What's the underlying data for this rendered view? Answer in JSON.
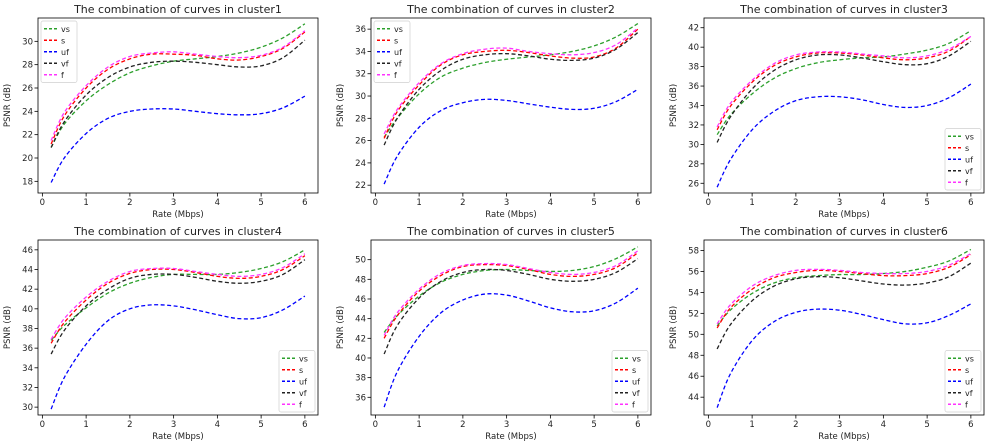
{
  "chart_data": [
    {
      "type": "line",
      "title": "The combination of curves in cluster1",
      "xlabel": "Rate (Mbps)",
      "ylabel": "PSNR (dB)",
      "xlim": [
        -0.1,
        6.3
      ],
      "ylim": [
        17,
        32
      ],
      "xticks": [
        0,
        1,
        2,
        3,
        4,
        5,
        6
      ],
      "yticks": [
        18,
        20,
        22,
        24,
        26,
        28,
        30
      ],
      "legend_position": "top-left",
      "x": [
        0.2,
        0.5,
        1,
        1.5,
        2,
        2.5,
        3,
        3.5,
        4,
        4.5,
        5,
        5.5,
        6
      ],
      "series": [
        {
          "name": "vs",
          "color": "#2ca02c",
          "values": [
            20.9,
            22.9,
            24.9,
            26.3,
            27.3,
            27.9,
            28.3,
            28.5,
            28.7,
            29.0,
            29.5,
            30.3,
            31.5
          ]
        },
        {
          "name": "s",
          "color": "#ff0000",
          "values": [
            21.2,
            23.6,
            26.0,
            27.6,
            28.5,
            28.9,
            28.9,
            28.8,
            28.5,
            28.4,
            28.7,
            29.4,
            30.8
          ]
        },
        {
          "name": "uf",
          "color": "#0000ff",
          "values": [
            17.9,
            20.0,
            22.1,
            23.4,
            24.0,
            24.2,
            24.2,
            24.0,
            23.8,
            23.7,
            23.8,
            24.3,
            25.3
          ]
        },
        {
          "name": "vf",
          "color": "#222222",
          "values": [
            20.9,
            23.1,
            25.4,
            26.9,
            27.8,
            28.2,
            28.3,
            28.2,
            28.0,
            27.8,
            27.9,
            28.6,
            30.1
          ]
        },
        {
          "name": "f",
          "color": "#ff33ff",
          "values": [
            21.5,
            23.9,
            26.2,
            27.8,
            28.7,
            29.0,
            29.1,
            28.9,
            28.7,
            28.6,
            28.8,
            29.5,
            30.9
          ]
        }
      ]
    },
    {
      "type": "line",
      "title": "The combination of curves in cluster2",
      "xlabel": "Rate (Mbps)",
      "ylabel": "PSNR (dB)",
      "xlim": [
        -0.1,
        6.3
      ],
      "ylim": [
        21.3,
        37
      ],
      "xticks": [
        0,
        1,
        2,
        3,
        4,
        5,
        6
      ],
      "yticks": [
        22,
        24,
        26,
        28,
        30,
        32,
        34,
        36
      ],
      "legend_position": "top-left",
      "x": [
        0.2,
        0.5,
        1,
        1.5,
        2,
        2.5,
        3,
        3.5,
        4,
        4.5,
        5,
        5.5,
        6
      ],
      "series": [
        {
          "name": "vs",
          "color": "#2ca02c",
          "values": [
            26.3,
            28.0,
            30.2,
            31.7,
            32.5,
            33.0,
            33.3,
            33.5,
            33.7,
            34.0,
            34.5,
            35.3,
            36.5
          ]
        },
        {
          "name": "s",
          "color": "#ff0000",
          "values": [
            26.2,
            28.6,
            31.0,
            32.8,
            33.7,
            34.0,
            34.1,
            33.9,
            33.6,
            33.4,
            33.5,
            34.3,
            36.0
          ]
        },
        {
          "name": "uf",
          "color": "#0000ff",
          "values": [
            22.1,
            24.6,
            27.2,
            28.7,
            29.4,
            29.7,
            29.6,
            29.3,
            29.0,
            28.8,
            28.9,
            29.5,
            30.6
          ]
        },
        {
          "name": "vf",
          "color": "#222222",
          "values": [
            25.6,
            28.0,
            30.6,
            32.3,
            33.3,
            33.7,
            33.8,
            33.6,
            33.3,
            33.2,
            33.4,
            34.2,
            35.7
          ]
        },
        {
          "name": "f",
          "color": "#ff33ff",
          "values": [
            26.6,
            28.8,
            31.2,
            32.9,
            33.8,
            34.2,
            34.3,
            34.0,
            33.8,
            33.7,
            33.9,
            34.6,
            36.1
          ]
        }
      ]
    },
    {
      "type": "line",
      "title": "The combination of curves in cluster3",
      "xlabel": "Rate (Mbps)",
      "ylabel": "PSNR (dB)",
      "xlim": [
        -0.1,
        6.3
      ],
      "ylim": [
        25,
        43
      ],
      "xticks": [
        0,
        1,
        2,
        3,
        4,
        5,
        6
      ],
      "yticks": [
        26,
        28,
        30,
        32,
        34,
        36,
        38,
        40,
        42
      ],
      "legend_position": "bottom-right",
      "x": [
        0.2,
        0.5,
        1,
        1.5,
        2,
        2.5,
        3,
        3.5,
        4,
        4.5,
        5,
        5.5,
        6
      ],
      "series": [
        {
          "name": "vs",
          "color": "#2ca02c",
          "values": [
            31.0,
            33.0,
            35.2,
            36.8,
            37.8,
            38.4,
            38.7,
            38.9,
            39.0,
            39.3,
            39.7,
            40.4,
            41.7
          ]
        },
        {
          "name": "s",
          "color": "#ff0000",
          "values": [
            31.5,
            33.9,
            36.4,
            38.1,
            39.0,
            39.4,
            39.4,
            39.2,
            38.9,
            38.7,
            38.9,
            39.6,
            41.1
          ]
        },
        {
          "name": "uf",
          "color": "#0000ff",
          "values": [
            25.6,
            28.4,
            31.5,
            33.4,
            34.5,
            34.9,
            34.9,
            34.6,
            34.1,
            33.8,
            34.0,
            34.8,
            36.2
          ]
        },
        {
          "name": "vf",
          "color": "#222222",
          "values": [
            30.2,
            32.8,
            35.7,
            37.6,
            38.7,
            39.2,
            39.2,
            38.9,
            38.5,
            38.2,
            38.3,
            39.1,
            40.6
          ]
        },
        {
          "name": "f",
          "color": "#ff33ff",
          "values": [
            31.8,
            34.2,
            36.6,
            38.3,
            39.2,
            39.5,
            39.5,
            39.3,
            39.1,
            38.9,
            39.1,
            39.8,
            41.1
          ]
        }
      ]
    },
    {
      "type": "line",
      "title": "The combination of curves in cluster4",
      "xlabel": "Rate (Mbps)",
      "ylabel": "PSNR (dB)",
      "xlim": [
        -0.1,
        6.3
      ],
      "ylim": [
        29.2,
        47
      ],
      "xticks": [
        0,
        1,
        2,
        3,
        4,
        5,
        6
      ],
      "yticks": [
        30,
        32,
        34,
        36,
        38,
        40,
        42,
        44,
        46
      ],
      "legend_position": "bottom-right",
      "x": [
        0.2,
        0.5,
        1,
        1.5,
        2,
        2.5,
        3,
        3.5,
        4,
        4.5,
        5,
        5.5,
        6
      ],
      "series": [
        {
          "name": "vs",
          "color": "#2ca02c",
          "values": [
            36.8,
            38.3,
            40.1,
            41.6,
            42.6,
            43.2,
            43.5,
            43.5,
            43.5,
            43.7,
            44.1,
            44.8,
            46.0
          ]
        },
        {
          "name": "s",
          "color": "#ff0000",
          "values": [
            36.5,
            38.6,
            40.9,
            42.6,
            43.6,
            44.0,
            44.0,
            43.7,
            43.3,
            43.1,
            43.3,
            44.0,
            45.4
          ]
        },
        {
          "name": "uf",
          "color": "#0000ff",
          "values": [
            29.8,
            33.0,
            36.4,
            38.8,
            40.0,
            40.4,
            40.3,
            39.9,
            39.4,
            39.0,
            39.1,
            39.9,
            41.3
          ]
        },
        {
          "name": "vf",
          "color": "#222222",
          "values": [
            35.4,
            37.8,
            40.3,
            42.0,
            43.1,
            43.5,
            43.5,
            43.2,
            42.8,
            42.6,
            42.8,
            43.5,
            45.0
          ]
        },
        {
          "name": "f",
          "color": "#ff33ff",
          "values": [
            36.9,
            39.0,
            41.2,
            42.8,
            43.8,
            44.1,
            44.1,
            43.8,
            43.5,
            43.3,
            43.5,
            44.2,
            45.6
          ]
        }
      ]
    },
    {
      "type": "line",
      "title": "The combination of curves in cluster5",
      "xlabel": "Rate (Mbps)",
      "ylabel": "PSNR (dB)",
      "xlim": [
        -0.1,
        6.3
      ],
      "ylim": [
        34.2,
        52
      ],
      "xticks": [
        0,
        1,
        2,
        3,
        4,
        5,
        6
      ],
      "yticks": [
        36,
        38,
        40,
        42,
        44,
        46,
        48,
        50
      ],
      "legend_position": "bottom-right",
      "x": [
        0.2,
        0.5,
        1,
        1.5,
        2,
        2.5,
        3,
        3.5,
        4,
        4.5,
        5,
        5.5,
        6
      ],
      "series": [
        {
          "name": "vs",
          "color": "#2ca02c",
          "values": [
            42.6,
            44.3,
            46.3,
            47.7,
            48.5,
            48.9,
            49.0,
            48.9,
            48.8,
            48.9,
            49.3,
            50.1,
            51.3
          ]
        },
        {
          "name": "s",
          "color": "#ff0000",
          "values": [
            42.0,
            44.3,
            46.8,
            48.4,
            49.3,
            49.5,
            49.4,
            49.0,
            48.5,
            48.3,
            48.5,
            49.2,
            50.7
          ]
        },
        {
          "name": "uf",
          "color": "#0000ff",
          "values": [
            35.0,
            38.6,
            42.2,
            44.6,
            45.9,
            46.5,
            46.4,
            45.8,
            45.1,
            44.7,
            44.8,
            45.6,
            47.1
          ]
        },
        {
          "name": "vf",
          "color": "#222222",
          "values": [
            40.4,
            43.3,
            46.1,
            47.8,
            48.7,
            49.0,
            48.9,
            48.5,
            48.0,
            47.8,
            48.0,
            48.7,
            50.1
          ]
        },
        {
          "name": "f",
          "color": "#ff33ff",
          "values": [
            42.3,
            44.6,
            47.0,
            48.6,
            49.4,
            49.6,
            49.5,
            49.1,
            48.7,
            48.5,
            48.7,
            49.4,
            50.9
          ]
        }
      ]
    },
    {
      "type": "line",
      "title": "The combination of curves in cluster6",
      "xlabel": "Rate (Mbps)",
      "ylabel": "PSNR (dB)",
      "xlim": [
        -0.1,
        6.3
      ],
      "ylim": [
        42.3,
        59
      ],
      "xticks": [
        0,
        1,
        2,
        3,
        4,
        5,
        6
      ],
      "yticks": [
        44,
        46,
        48,
        50,
        52,
        54,
        56,
        58
      ],
      "legend_position": "bottom-right",
      "x": [
        0.2,
        0.5,
        1,
        1.5,
        2,
        2.5,
        3,
        3.5,
        4,
        4.5,
        5,
        5.5,
        6
      ],
      "series": [
        {
          "name": "vs",
          "color": "#2ca02c",
          "values": [
            50.8,
            52.3,
            53.9,
            54.9,
            55.4,
            55.6,
            55.7,
            55.7,
            55.8,
            56.0,
            56.4,
            57.0,
            58.1
          ]
        },
        {
          "name": "s",
          "color": "#ff0000",
          "values": [
            50.6,
            52.5,
            54.3,
            55.4,
            55.9,
            56.1,
            56.0,
            55.8,
            55.6,
            55.6,
            55.8,
            56.4,
            57.6
          ]
        },
        {
          "name": "uf",
          "color": "#0000ff",
          "values": [
            43.0,
            46.2,
            49.4,
            51.2,
            52.1,
            52.4,
            52.3,
            51.9,
            51.4,
            51.0,
            51.1,
            51.8,
            52.9
          ]
        },
        {
          "name": "vf",
          "color": "#222222",
          "values": [
            48.6,
            50.9,
            53.2,
            54.6,
            55.3,
            55.5,
            55.4,
            55.1,
            54.8,
            54.7,
            54.9,
            55.5,
            56.8
          ]
        },
        {
          "name": "f",
          "color": "#ff33ff",
          "values": [
            51.0,
            52.8,
            54.6,
            55.6,
            56.1,
            56.2,
            56.1,
            55.9,
            55.8,
            55.8,
            56.0,
            56.6,
            57.7
          ]
        }
      ]
    }
  ]
}
